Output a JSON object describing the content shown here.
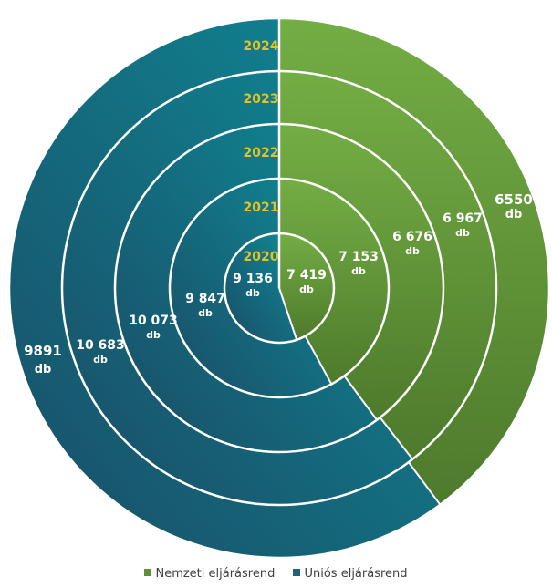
{
  "chart_data": {
    "type": "pie",
    "subtype": "concentric-rings",
    "unit": "db",
    "years": [
      "2020",
      "2021",
      "2022",
      "2023",
      "2024"
    ],
    "series": [
      {
        "name": "Nemzeti eljárásrend",
        "values_display": [
          "7 419",
          "7 153",
          "6 676",
          "6 967",
          "6550"
        ],
        "values": [
          7419,
          7153,
          6676,
          6967,
          6550
        ],
        "color": "#5f8f36"
      },
      {
        "name": "Uniós eljárásrend",
        "values_display": [
          "9 136",
          "9 847",
          "10 073",
          "10 683",
          "9891"
        ],
        "values": [
          9136,
          9847,
          10073,
          10683,
          9891
        ],
        "color": "#1a6577"
      }
    ],
    "year_label_color": "#e8c21b",
    "legend": {
      "position": "bottom"
    }
  }
}
